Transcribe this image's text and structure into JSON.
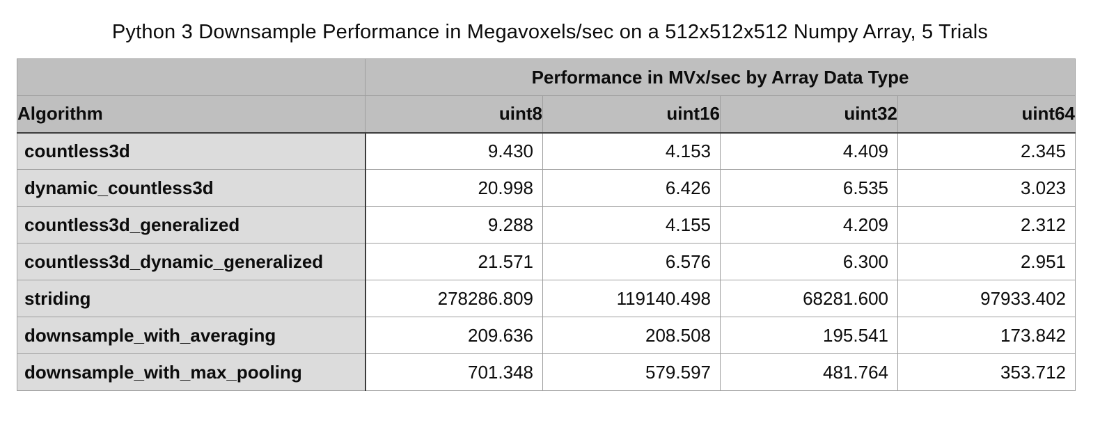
{
  "title": "Python 3 Downsample Performance in Megavoxels/sec on a 512x512x512 Numpy Array, 5 Trials",
  "table": {
    "group_header": "Performance in MVx/sec by Array Data Type",
    "columns": [
      "Algorithm",
      "uint8",
      "uint16",
      "uint32",
      "uint64"
    ],
    "rows": [
      {
        "algorithm": "countless3d",
        "values": [
          "9.430",
          "4.153",
          "4.409",
          "2.345"
        ]
      },
      {
        "algorithm": "dynamic_countless3d",
        "values": [
          "20.998",
          "6.426",
          "6.535",
          "3.023"
        ]
      },
      {
        "algorithm": "countless3d_generalized",
        "values": [
          "9.288",
          "4.155",
          "4.209",
          "2.312"
        ]
      },
      {
        "algorithm": "countless3d_dynamic_generalized",
        "values": [
          "21.571",
          "6.576",
          "6.300",
          "2.951"
        ]
      },
      {
        "algorithm": "striding",
        "values": [
          "278286.809",
          "119140.498",
          "68281.600",
          "97933.402"
        ]
      },
      {
        "algorithm": "downsample_with_averaging",
        "values": [
          "209.636",
          "208.508",
          "195.541",
          "173.842"
        ]
      },
      {
        "algorithm": "downsample_with_max_pooling",
        "values": [
          "701.348",
          "579.597",
          "481.764",
          "353.712"
        ]
      }
    ]
  },
  "chart_data": {
    "type": "table",
    "title": "Python 3 Downsample Performance in Megavoxels/sec on a 512x512x512 Numpy Array, 5 Trials",
    "group_header": "Performance in MVx/sec by Array Data Type",
    "categories": [
      "uint8",
      "uint16",
      "uint32",
      "uint64"
    ],
    "series": [
      {
        "name": "countless3d",
        "values": [
          9.43,
          4.153,
          4.409,
          2.345
        ]
      },
      {
        "name": "dynamic_countless3d",
        "values": [
          20.998,
          6.426,
          6.535,
          3.023
        ]
      },
      {
        "name": "countless3d_generalized",
        "values": [
          9.288,
          4.155,
          4.209,
          2.312
        ]
      },
      {
        "name": "countless3d_dynamic_generalized",
        "values": [
          21.571,
          6.576,
          6.3,
          2.951
        ]
      },
      {
        "name": "striding",
        "values": [
          278286.809,
          119140.498,
          68281.6,
          97933.402
        ]
      },
      {
        "name": "downsample_with_averaging",
        "values": [
          209.636,
          208.508,
          195.541,
          173.842
        ]
      },
      {
        "name": "downsample_with_max_pooling",
        "values": [
          701.348,
          579.597,
          481.764,
          353.712
        ]
      }
    ]
  },
  "colors": {
    "header_bg": "#bfbfbf",
    "label_column_bg": "#dcdcdc",
    "cell_bg": "#ffffff",
    "grid_line": "#9e9e9e",
    "strong_line": "#3c3c3c",
    "text": "#0c0c0c"
  }
}
